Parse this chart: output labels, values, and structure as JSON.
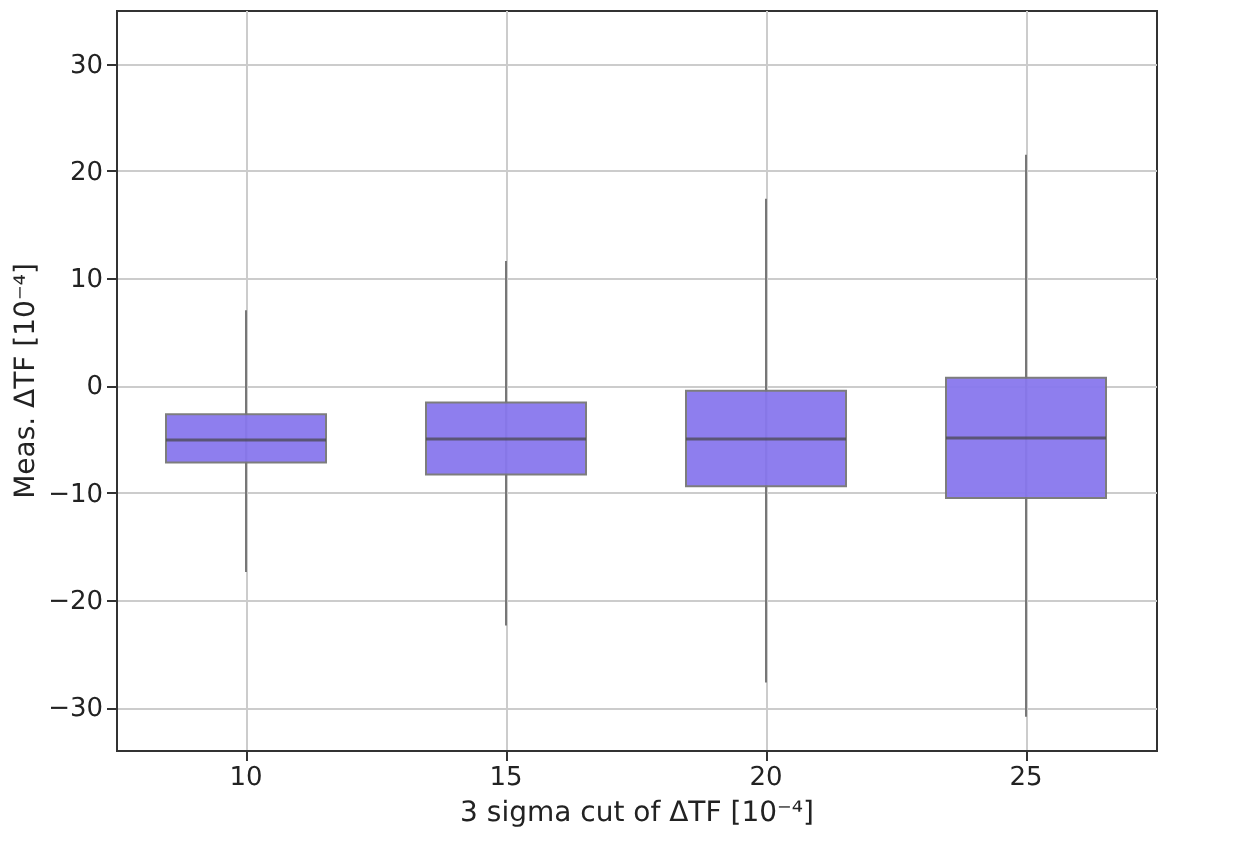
{
  "chart_data": {
    "type": "box",
    "xlabel": "3 sigma cut of ΔTF [10⁻⁴]",
    "ylabel": "Meas. ΔTF [10⁻⁴]",
    "categories": [
      "10",
      "15",
      "20",
      "25"
    ],
    "series": [
      {
        "color": "#8878ee",
        "boxes": [
          {
            "low": -17.4,
            "q1": -7.2,
            "median": -5.1,
            "q3": -2.7,
            "high": 7.0
          },
          {
            "low": -22.4,
            "q1": -8.3,
            "median": -5.0,
            "q3": -1.6,
            "high": 11.6
          },
          {
            "low": -27.7,
            "q1": -9.4,
            "median": -5.0,
            "q3": -0.5,
            "high": 17.4
          },
          {
            "low": -30.9,
            "q1": -10.5,
            "median": -4.9,
            "q3": 0.7,
            "high": 21.5
          }
        ]
      }
    ],
    "ylim": [
      -34,
      35
    ],
    "yticks": [
      -30,
      -20,
      -10,
      0,
      10,
      20,
      30
    ],
    "grid": true
  }
}
